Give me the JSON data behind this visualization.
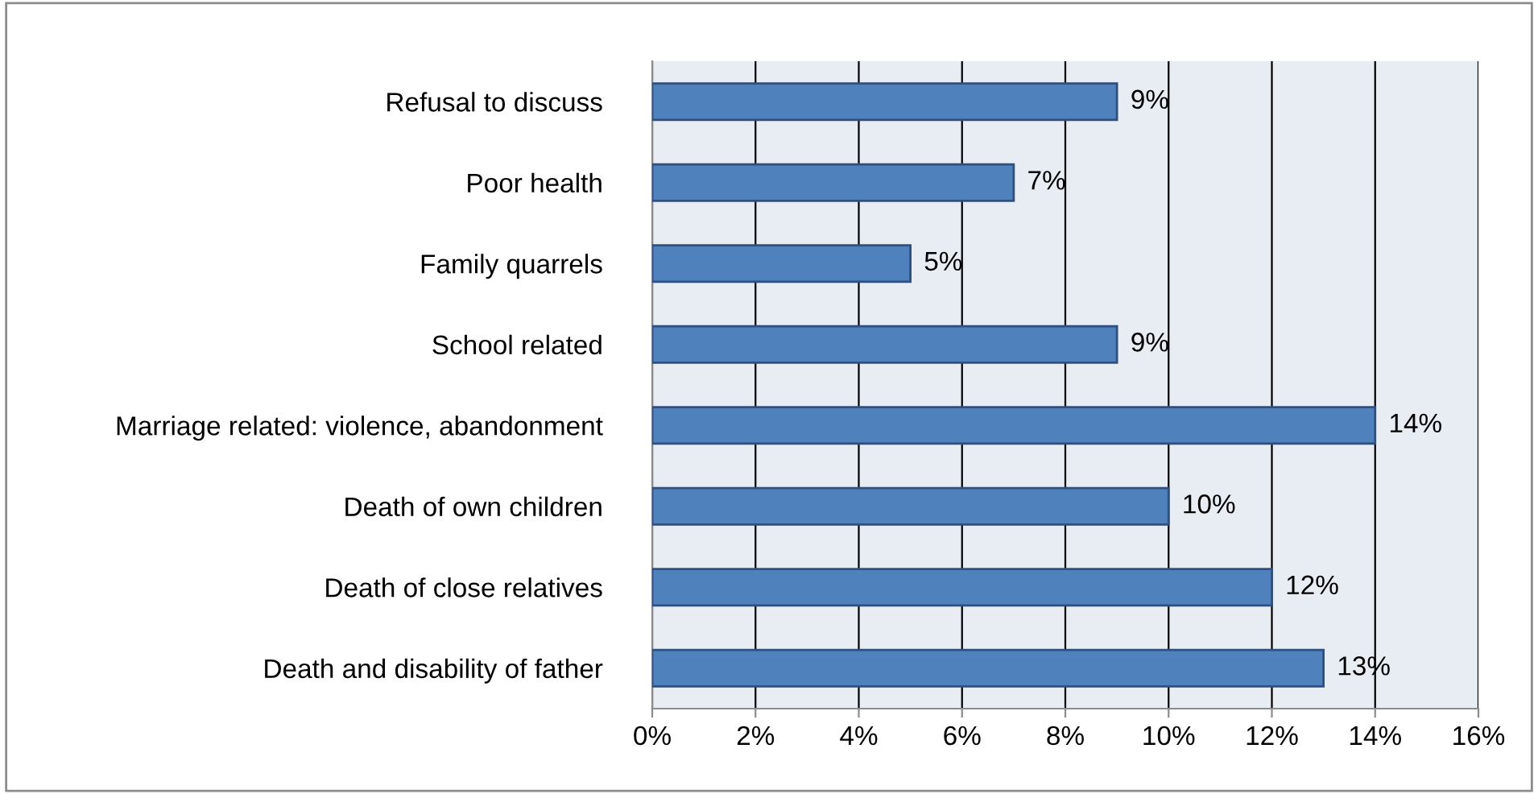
{
  "chart_data": {
    "type": "bar",
    "orientation": "horizontal",
    "categories": [
      "Refusal to discuss",
      "Poor health",
      "Family quarrels",
      "School related",
      "Marriage related: violence, abandonment",
      "Death of own children",
      "Death of close relatives",
      "Death and disability of father"
    ],
    "values": [
      9,
      7,
      5,
      9,
      14,
      10,
      12,
      13
    ],
    "value_labels": [
      "9%",
      "7%",
      "5%",
      "9%",
      "14%",
      "10%",
      "12%",
      "13%"
    ],
    "color": "#4f81bd",
    "xlim": [
      0,
      16
    ],
    "xticks": [
      {
        "value": 0,
        "label": "0%"
      },
      {
        "value": 2,
        "label": "2%"
      },
      {
        "value": 4,
        "label": "4%"
      },
      {
        "value": 6,
        "label": "6%"
      },
      {
        "value": 8,
        "label": "8%"
      },
      {
        "value": 10,
        "label": "10%"
      },
      {
        "value": 12,
        "label": "12%"
      },
      {
        "value": 14,
        "label": "14%"
      },
      {
        "value": 16,
        "label": "16%"
      }
    ],
    "grid": "x",
    "legend": false
  }
}
